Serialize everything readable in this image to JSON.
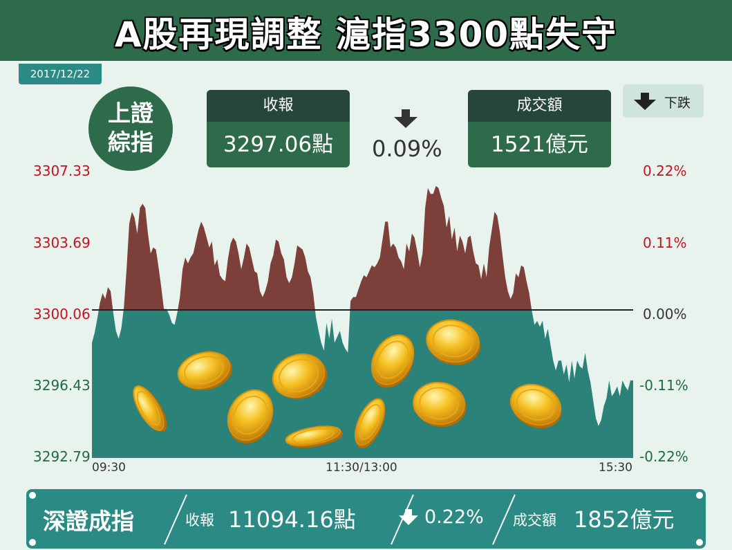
{
  "header": {
    "title": "A股再現調整  滬指3300點失守",
    "date": "2017/12/22"
  },
  "index_badge": {
    "line1": "上證",
    "line2": "綜指"
  },
  "close_box": {
    "label": "收報",
    "value": "3297.06點"
  },
  "change": {
    "value": "0.09%",
    "direction": "down-arrow-icon"
  },
  "turnover_box": {
    "label": "成交額",
    "value": "1521億元"
  },
  "legend": {
    "label": "下跌"
  },
  "colors": {
    "header": "#2e6b4a",
    "up_area": "#7d3f3a",
    "down_area": "#2a8279",
    "red_text": "#c8101e",
    "green_text": "#1e6b3e"
  },
  "chart_data": {
    "type": "area",
    "baseline": 3300.06,
    "ylim": [
      3292.79,
      3307.33
    ],
    "left_ticks": [
      "3307.33",
      "3303.69",
      "3300.06",
      "3296.43",
      "3292.79"
    ],
    "right_ticks": [
      "0.22%",
      "0.11%",
      "0.00%",
      "-0.11%",
      "-0.22%"
    ],
    "x_ticks": [
      "09:30",
      "11:30/13:00",
      "15:30"
    ],
    "values": [
      3298.6,
      3299.1,
      3299.8,
      3300.6,
      3301.1,
      3300.8,
      3301.4,
      3301.2,
      3300.1,
      3299.2,
      3298.8,
      3299.3,
      3300.4,
      3302.3,
      3304.6,
      3305.2,
      3304.9,
      3304.1,
      3305.4,
      3305.6,
      3305.4,
      3304.1,
      3303.1,
      3303.4,
      3303.3,
      3302.4,
      3301.4,
      3300.3,
      3300.3,
      3300.0,
      3299.6,
      3299.5,
      3300.1,
      3300.9,
      3302.3,
      3302.9,
      3302.6,
      3302.9,
      3303.1,
      3303.7,
      3304.3,
      3304.7,
      3304.4,
      3303.9,
      3303.4,
      3303.7,
      3302.5,
      3302.8,
      3302.0,
      3301.8,
      3301.7,
      3302.8,
      3303.6,
      3303.9,
      3303.7,
      3303.1,
      3302.3,
      3302.9,
      3303.6,
      3303.4,
      3302.8,
      3302.2,
      3302.1,
      3301.2,
      3300.9,
      3301.2,
      3301.7,
      3302.6,
      3303.0,
      3303.8,
      3303.7,
      3303.1,
      3302.8,
      3301.9,
      3301.6,
      3301.9,
      3302.6,
      3303.5,
      3303.4,
      3303.3,
      3302.9,
      3302.2,
      3301.9,
      3301.1,
      3299.9,
      3299.2,
      3298.6,
      3298.2,
      3299.6,
      3298.8,
      3299.8,
      3298.6,
      3298.9,
      3299.2,
      3298.6,
      3298.3,
      3298.1,
      3300.7,
      3300.9,
      3300.9,
      3301.3,
      3301.7,
      3302.0,
      3301.9,
      3302.2,
      3302.5,
      3302.4,
      3302.6,
      3302.9,
      3303.8,
      3304.7,
      3304.7,
      3303.4,
      3303.6,
      3303.4,
      3302.9,
      3302.7,
      3302.3,
      3303.6,
      3303.2,
      3304.1,
      3303.9,
      3303.2,
      3302.4,
      3303.1,
      3305.4,
      3306.4,
      3306.1,
      3306.1,
      3306.5,
      3306.4,
      3305.9,
      3305.5,
      3304.4,
      3305.0,
      3303.8,
      3304.4,
      3303.2,
      3304.0,
      3303.7,
      3303.1,
      3303.9,
      3304.0,
      3303.2,
      3302.6,
      3302.5,
      3301.8,
      3302.6,
      3301.9,
      3303.4,
      3304.3,
      3305.2,
      3305.0,
      3304.2,
      3303.0,
      3301.9,
      3301.2,
      3300.8,
      3301.1,
      3302.1,
      3301.9,
      3302.5,
      3302.4,
      3301.7,
      3301.1,
      3300.2,
      3299.5,
      3299.7,
      3299.4,
      3299.7,
      3298.8,
      3299.3,
      3298.5,
      3297.7,
      3297.2,
      3297.7,
      3297.7,
      3297.0,
      3297.5,
      3296.6,
      3297.7,
      3296.8,
      3297.7,
      3297.4,
      3297.3,
      3298.1,
      3297.2,
      3296.6,
      3295.7,
      3294.8,
      3294.4,
      3294.7,
      3295.4,
      3295.8,
      3296.7,
      3295.9,
      3296.1,
      3296.4,
      3295.9,
      3296.7,
      3296.4,
      3296.2,
      3296.7,
      3296.7
    ]
  },
  "coins": [
    "coin",
    "coin",
    "coin",
    "coin",
    "coin",
    "coin",
    "coin",
    "coin",
    "coin",
    "coin",
    "coin"
  ],
  "footer": {
    "index_name": "深證成指",
    "close_label": "收報",
    "close_value": "11094.16點",
    "change": "0.22%",
    "turnover_label": "成交額",
    "turnover_value": "1852億元"
  }
}
